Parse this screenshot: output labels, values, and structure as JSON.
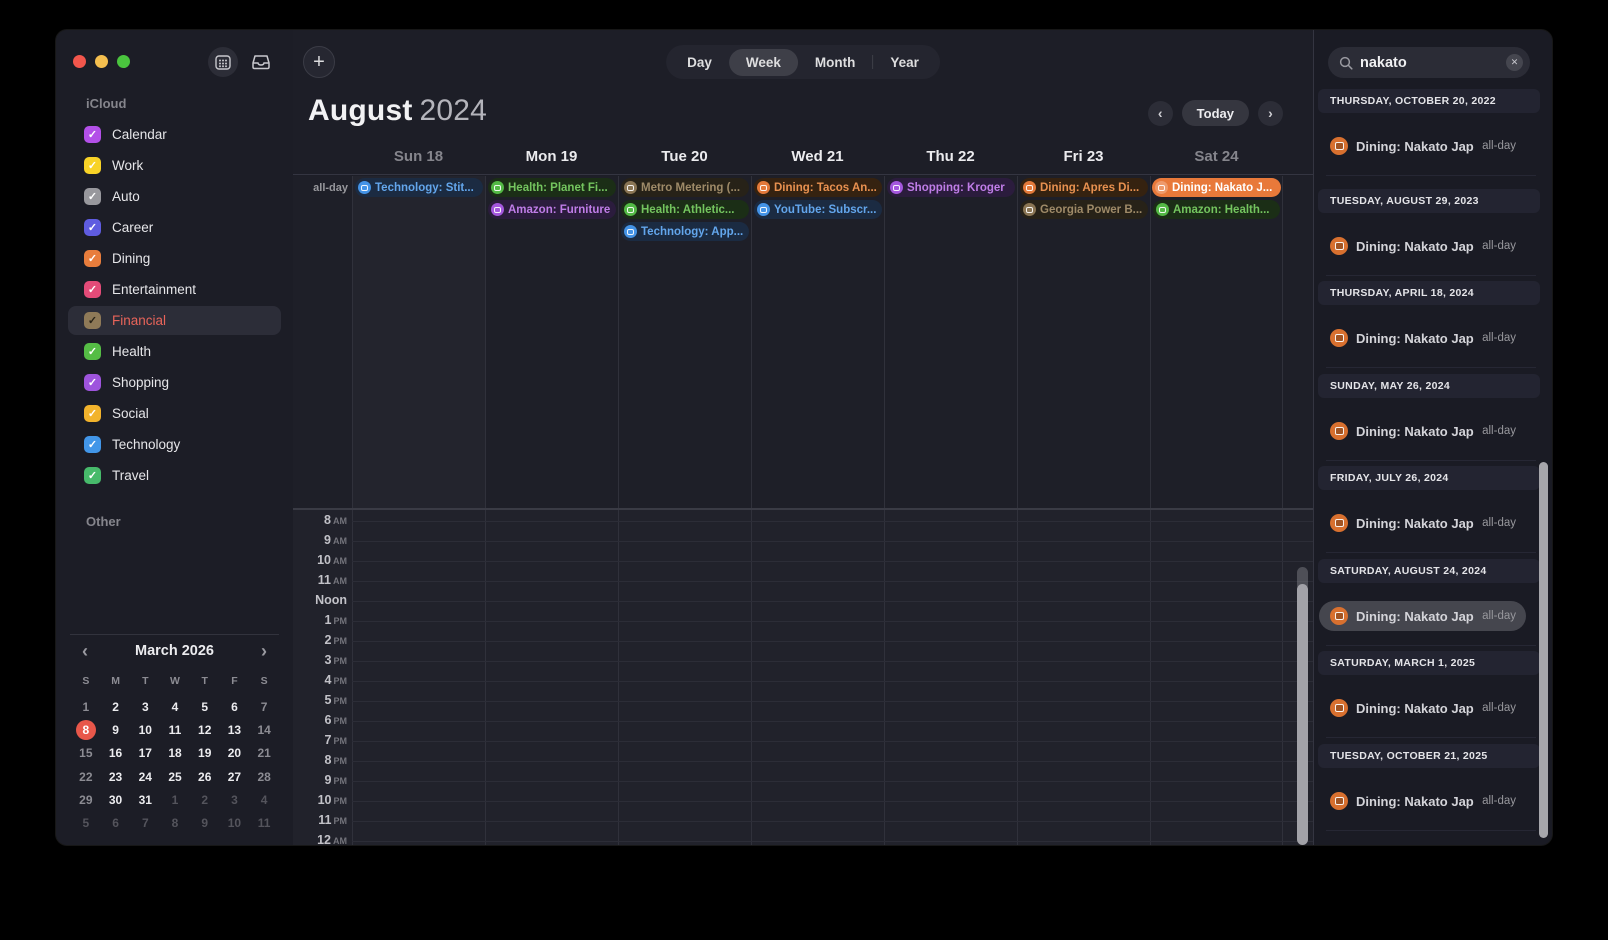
{
  "icons": {
    "sidebar_calendar_toggle": "calendar-grid",
    "inbox": "inbox-tray",
    "plus": "+",
    "chevron_left": "‹",
    "chevron_right": "›",
    "search": "magnifier",
    "clear": "✕",
    "check": "✓",
    "event": "calendar"
  },
  "colors": {
    "traffic_red": "#f2564c",
    "traffic_yellow": "#f5bf4f",
    "traffic_green": "#4ac43e",
    "selected_event_bg": "#e8793a",
    "today_circle": "#e8574a",
    "financial_text": "#e8645a",
    "categories": {
      "technology": {
        "fg": "#63a6ec",
        "icon": "#4493e6",
        "bg": "#1b2b42"
      },
      "health": {
        "fg": "#74c55f",
        "icon": "#53b945",
        "bg": "#1b2e16"
      },
      "shopping": {
        "fg": "#c07de8",
        "icon": "#a457dd",
        "bg": "#2b1c3d"
      },
      "financial": {
        "fg": "#9e8a68",
        "icon": "#8a7554",
        "bg": "#272218"
      },
      "dining": {
        "fg": "#e89150",
        "icon": "#e3793a",
        "bg": "#352210"
      }
    }
  },
  "sidebar": {
    "source_label": "iCloud",
    "other_label": "Other",
    "calendars": [
      {
        "label": "Calendar",
        "color": "#b350e8",
        "checked": true,
        "selected": false
      },
      {
        "label": "Work",
        "color": "#f8d327",
        "checked": true,
        "selected": false
      },
      {
        "label": "Auto",
        "color": "#98989d",
        "checked": true,
        "selected": false
      },
      {
        "label": "Career",
        "color": "#5f5ce0",
        "checked": true,
        "selected": false
      },
      {
        "label": "Dining",
        "color": "#e87d3c",
        "checked": true,
        "selected": false
      },
      {
        "label": "Entertainment",
        "color": "#e34b78",
        "checked": true,
        "selected": false
      },
      {
        "label": "Financial",
        "color": "#8f7a58",
        "checked": true,
        "selected": true
      },
      {
        "label": "Health",
        "color": "#55bd45",
        "checked": true,
        "selected": false
      },
      {
        "label": "Shopping",
        "color": "#9e54dd",
        "checked": true,
        "selected": false
      },
      {
        "label": "Social",
        "color": "#f2b32c",
        "checked": true,
        "selected": false
      },
      {
        "label": "Technology",
        "color": "#4296e8",
        "checked": true,
        "selected": false
      },
      {
        "label": "Travel",
        "color": "#47ba6b",
        "checked": true,
        "selected": false
      }
    ],
    "mini_calendar": {
      "title": "March 2026",
      "dow": [
        "S",
        "M",
        "T",
        "W",
        "T",
        "F",
        "S"
      ],
      "weeks": [
        [
          {
            "d": "1",
            "v": "we"
          },
          {
            "d": "2",
            "v": "wd"
          },
          {
            "d": "3",
            "v": "wd"
          },
          {
            "d": "4",
            "v": "wd"
          },
          {
            "d": "5",
            "v": "wd"
          },
          {
            "d": "6",
            "v": "wd"
          },
          {
            "d": "7",
            "v": "we"
          }
        ],
        [
          {
            "d": "8",
            "v": "today"
          },
          {
            "d": "9",
            "v": "wd"
          },
          {
            "d": "10",
            "v": "wd"
          },
          {
            "d": "11",
            "v": "wd"
          },
          {
            "d": "12",
            "v": "wd"
          },
          {
            "d": "13",
            "v": "wd"
          },
          {
            "d": "14",
            "v": "we"
          }
        ],
        [
          {
            "d": "15",
            "v": "we"
          },
          {
            "d": "16",
            "v": "wd"
          },
          {
            "d": "17",
            "v": "wd"
          },
          {
            "d": "18",
            "v": "wd"
          },
          {
            "d": "19",
            "v": "wd"
          },
          {
            "d": "20",
            "v": "wd"
          },
          {
            "d": "21",
            "v": "we"
          }
        ],
        [
          {
            "d": "22",
            "v": "we"
          },
          {
            "d": "23",
            "v": "wd"
          },
          {
            "d": "24",
            "v": "wd"
          },
          {
            "d": "25",
            "v": "wd"
          },
          {
            "d": "26",
            "v": "wd"
          },
          {
            "d": "27",
            "v": "wd"
          },
          {
            "d": "28",
            "v": "we"
          }
        ],
        [
          {
            "d": "29",
            "v": "we"
          },
          {
            "d": "30",
            "v": "wd"
          },
          {
            "d": "31",
            "v": "wd"
          },
          {
            "d": "1",
            "v": "out"
          },
          {
            "d": "2",
            "v": "out"
          },
          {
            "d": "3",
            "v": "out"
          },
          {
            "d": "4",
            "v": "out"
          }
        ],
        [
          {
            "d": "5",
            "v": "out"
          },
          {
            "d": "6",
            "v": "out"
          },
          {
            "d": "7",
            "v": "out"
          },
          {
            "d": "8",
            "v": "out"
          },
          {
            "d": "9",
            "v": "out"
          },
          {
            "d": "10",
            "v": "out"
          },
          {
            "d": "11",
            "v": "out"
          }
        ]
      ]
    }
  },
  "toolbar": {
    "views": [
      "Day",
      "Week",
      "Month",
      "Year"
    ],
    "active_view": "Week",
    "today_label": "Today",
    "title_month": "August",
    "title_year": "2024"
  },
  "week_view": {
    "all_day_label": "all-day",
    "days": [
      {
        "label": "Sun 18",
        "dim": true,
        "events": [
          {
            "title": "Technology: Stit...",
            "cat": "technology"
          }
        ]
      },
      {
        "label": "Mon 19",
        "dim": false,
        "events": [
          {
            "title": "Health: Planet Fi...",
            "cat": "health"
          },
          {
            "title": "Amazon: Furniture",
            "cat": "shopping"
          }
        ]
      },
      {
        "label": "Tue 20",
        "dim": false,
        "events": [
          {
            "title": "Metro Metering (...",
            "cat": "financial"
          },
          {
            "title": "Health: Athletic...",
            "cat": "health"
          },
          {
            "title": "Technology: App...",
            "cat": "technology"
          }
        ]
      },
      {
        "label": "Wed 21",
        "dim": false,
        "events": [
          {
            "title": "Dining: Tacos An...",
            "cat": "dining"
          },
          {
            "title": "YouTube: Subscr...",
            "cat": "technology"
          }
        ]
      },
      {
        "label": "Thu 22",
        "dim": false,
        "events": [
          {
            "title": "Shopping: Kroger",
            "cat": "shopping"
          }
        ]
      },
      {
        "label": "Fri 23",
        "dim": false,
        "events": [
          {
            "title": "Dining: Apres Di...",
            "cat": "dining"
          },
          {
            "title": "Georgia Power B...",
            "cat": "financial"
          }
        ]
      },
      {
        "label": "Sat 24",
        "dim": true,
        "events": [
          {
            "title": "Dining: Nakato J...",
            "cat": "dining",
            "selected": true
          },
          {
            "title": "Amazon: Health...",
            "cat": "health"
          }
        ]
      }
    ],
    "hours": [
      {
        "n": "8",
        "s": "AM"
      },
      {
        "n": "9",
        "s": "AM"
      },
      {
        "n": "10",
        "s": "AM"
      },
      {
        "n": "11",
        "s": "AM"
      },
      {
        "n": "Noon",
        "s": ""
      },
      {
        "n": "1",
        "s": "PM"
      },
      {
        "n": "2",
        "s": "PM"
      },
      {
        "n": "3",
        "s": "PM"
      },
      {
        "n": "4",
        "s": "PM"
      },
      {
        "n": "5",
        "s": "PM"
      },
      {
        "n": "6",
        "s": "PM"
      },
      {
        "n": "7",
        "s": "PM"
      },
      {
        "n": "8",
        "s": "PM"
      },
      {
        "n": "9",
        "s": "PM"
      },
      {
        "n": "10",
        "s": "PM"
      },
      {
        "n": "11",
        "s": "PM"
      },
      {
        "n": "12",
        "s": "AM"
      }
    ]
  },
  "search_panel": {
    "query": "nakato",
    "results": [
      {
        "date": "THURSDAY, OCTOBER 20, 2022",
        "title": "Dining: Nakato Japa...",
        "time": "all-day",
        "selected": false
      },
      {
        "date": "TUESDAY, AUGUST 29, 2023",
        "title": "Dining: Nakato Japa...",
        "time": "all-day",
        "selected": false
      },
      {
        "date": "THURSDAY, APRIL 18, 2024",
        "title": "Dining: Nakato Japa...",
        "time": "all-day",
        "selected": false
      },
      {
        "date": "SUNDAY, MAY 26, 2024",
        "title": "Dining: Nakato Japa...",
        "time": "all-day",
        "selected": false
      },
      {
        "date": "FRIDAY, JULY 26, 2024",
        "title": "Dining: Nakato Japa...",
        "time": "all-day",
        "selected": false
      },
      {
        "date": "SATURDAY, AUGUST 24, 2024",
        "title": "Dining: Nakato Japa...",
        "time": "all-day",
        "selected": true
      },
      {
        "date": "SATURDAY, MARCH 1, 2025",
        "title": "Dining: Nakato Japa...",
        "time": "all-day",
        "selected": false
      },
      {
        "date": "TUESDAY, OCTOBER 21, 2025",
        "title": "Dining: Nakato Japa...",
        "time": "all-day",
        "selected": false
      }
    ]
  }
}
